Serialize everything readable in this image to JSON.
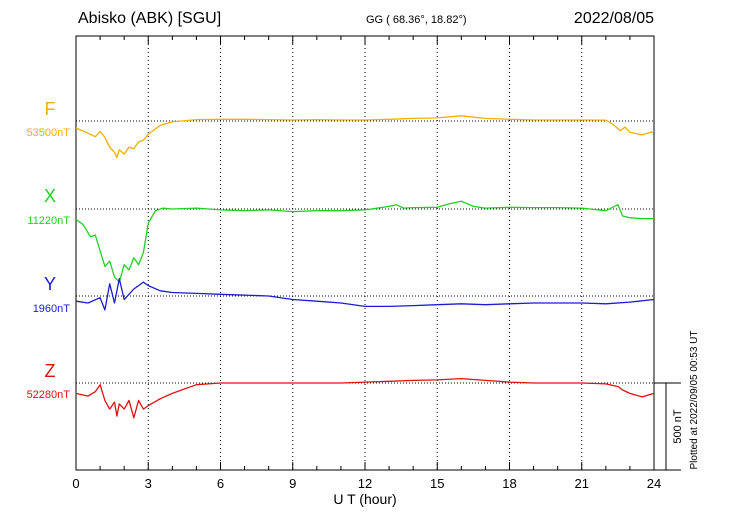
{
  "header": {
    "station": "Abisko (ABK)  [SGU]",
    "coords": "GG ( 68.36°,  18.82°)",
    "date": "2022/08/05"
  },
  "plotted_note": "Plotted at 2022/09/05 00:53 UT",
  "scale_bar_label": "500 nT",
  "chart_data": {
    "type": "line",
    "xlabel": "U T (hour)",
    "xlim": [
      0,
      24
    ],
    "xticks": [
      "0",
      "3",
      "6",
      "9",
      "12",
      "15",
      "18",
      "21",
      "24"
    ],
    "grid": true,
    "series": [
      {
        "name": "F",
        "baseline_label": "53500nT",
        "color": "#f0b000",
        "points": [
          [
            0,
            -40
          ],
          [
            0.5,
            -70
          ],
          [
            0.8,
            -90
          ],
          [
            1.0,
            -60
          ],
          [
            1.2,
            -95
          ],
          [
            1.4,
            -150
          ],
          [
            1.6,
            -180
          ],
          [
            1.7,
            -210
          ],
          [
            1.8,
            -165
          ],
          [
            2.0,
            -190
          ],
          [
            2.2,
            -150
          ],
          [
            2.4,
            -160
          ],
          [
            2.6,
            -120
          ],
          [
            2.8,
            -110
          ],
          [
            3.0,
            -75
          ],
          [
            3.5,
            -25
          ],
          [
            4.0,
            -5
          ],
          [
            5.0,
            8
          ],
          [
            6,
            10
          ],
          [
            7,
            10
          ],
          [
            8,
            8
          ],
          [
            9,
            6
          ],
          [
            10,
            8
          ],
          [
            11,
            6
          ],
          [
            12,
            6
          ],
          [
            13,
            10
          ],
          [
            14,
            15
          ],
          [
            15,
            18
          ],
          [
            16,
            30
          ],
          [
            17,
            15
          ],
          [
            18,
            10
          ],
          [
            19,
            6
          ],
          [
            20,
            6
          ],
          [
            21,
            6
          ],
          [
            22,
            5
          ],
          [
            22.3,
            -20
          ],
          [
            22.6,
            -55
          ],
          [
            22.8,
            -35
          ],
          [
            23.0,
            -65
          ],
          [
            23.5,
            -80
          ],
          [
            24,
            -60
          ]
        ]
      },
      {
        "name": "X",
        "baseline_label": "11220nT",
        "color": "#22d022",
        "points": [
          [
            0,
            -60
          ],
          [
            0.3,
            -90
          ],
          [
            0.6,
            -160
          ],
          [
            0.8,
            -150
          ],
          [
            1.0,
            -240
          ],
          [
            1.2,
            -330
          ],
          [
            1.4,
            -300
          ],
          [
            1.6,
            -390
          ],
          [
            1.8,
            -420
          ],
          [
            2.0,
            -320
          ],
          [
            2.2,
            -350
          ],
          [
            2.4,
            -280
          ],
          [
            2.6,
            -320
          ],
          [
            2.8,
            -250
          ],
          [
            3.0,
            -80
          ],
          [
            3.3,
            -10
          ],
          [
            3.6,
            5
          ],
          [
            4,
            0
          ],
          [
            5,
            5
          ],
          [
            6,
            -5
          ],
          [
            7,
            -10
          ],
          [
            8,
            -5
          ],
          [
            9,
            -15
          ],
          [
            10,
            -10
          ],
          [
            11,
            -10
          ],
          [
            12,
            -5
          ],
          [
            13,
            15
          ],
          [
            13.3,
            25
          ],
          [
            13.6,
            5
          ],
          [
            14,
            8
          ],
          [
            15,
            10
          ],
          [
            15.5,
            30
          ],
          [
            16,
            45
          ],
          [
            16.5,
            15
          ],
          [
            17,
            5
          ],
          [
            18,
            10
          ],
          [
            19,
            8
          ],
          [
            20,
            8
          ],
          [
            21,
            5
          ],
          [
            22,
            -10
          ],
          [
            22.5,
            25
          ],
          [
            22.7,
            -40
          ],
          [
            23,
            -50
          ],
          [
            23.5,
            -55
          ],
          [
            24,
            -55
          ]
        ]
      },
      {
        "name": "Y",
        "baseline_label": "1960nT",
        "color": "#1c1cd0",
        "points": [
          [
            0,
            -30
          ],
          [
            0.5,
            -40
          ],
          [
            1.0,
            -10
          ],
          [
            1.2,
            -80
          ],
          [
            1.4,
            70
          ],
          [
            1.6,
            -40
          ],
          [
            1.8,
            100
          ],
          [
            2.0,
            -20
          ],
          [
            2.2,
            10
          ],
          [
            2.4,
            40
          ],
          [
            2.6,
            60
          ],
          [
            2.8,
            80
          ],
          [
            3.0,
            60
          ],
          [
            3.5,
            30
          ],
          [
            4,
            20
          ],
          [
            5,
            15
          ],
          [
            6,
            10
          ],
          [
            7,
            5
          ],
          [
            8,
            0
          ],
          [
            9,
            -20
          ],
          [
            10,
            -30
          ],
          [
            11,
            -40
          ],
          [
            12,
            -60
          ],
          [
            13,
            -60
          ],
          [
            14,
            -55
          ],
          [
            15,
            -50
          ],
          [
            16,
            -45
          ],
          [
            17,
            -50
          ],
          [
            18,
            -45
          ],
          [
            19,
            -40
          ],
          [
            20,
            -40
          ],
          [
            21,
            -40
          ],
          [
            22,
            -45
          ],
          [
            23,
            -35
          ],
          [
            24,
            -20
          ]
        ]
      },
      {
        "name": "Z",
        "baseline_label": "52280nT",
        "color": "#e01010",
        "points": [
          [
            0,
            -60
          ],
          [
            0.5,
            -75
          ],
          [
            0.8,
            -50
          ],
          [
            1.0,
            -10
          ],
          [
            1.2,
            -100
          ],
          [
            1.4,
            -150
          ],
          [
            1.6,
            -110
          ],
          [
            1.7,
            -190
          ],
          [
            1.8,
            -120
          ],
          [
            2.0,
            -150
          ],
          [
            2.2,
            -100
          ],
          [
            2.4,
            -200
          ],
          [
            2.6,
            -100
          ],
          [
            2.8,
            -150
          ],
          [
            3.0,
            -130
          ],
          [
            3.5,
            -90
          ],
          [
            4,
            -60
          ],
          [
            5,
            -10
          ],
          [
            6,
            0
          ],
          [
            7,
            0
          ],
          [
            8,
            0
          ],
          [
            9,
            0
          ],
          [
            10,
            0
          ],
          [
            11,
            0
          ],
          [
            12,
            5
          ],
          [
            13,
            10
          ],
          [
            14,
            15
          ],
          [
            15,
            18
          ],
          [
            16,
            25
          ],
          [
            17,
            15
          ],
          [
            18,
            5
          ],
          [
            19,
            0
          ],
          [
            20,
            0
          ],
          [
            21,
            0
          ],
          [
            22,
            -5
          ],
          [
            22.5,
            -20
          ],
          [
            22.7,
            -40
          ],
          [
            23,
            -60
          ],
          [
            23.5,
            -80
          ],
          [
            24,
            -60
          ]
        ]
      }
    ]
  }
}
